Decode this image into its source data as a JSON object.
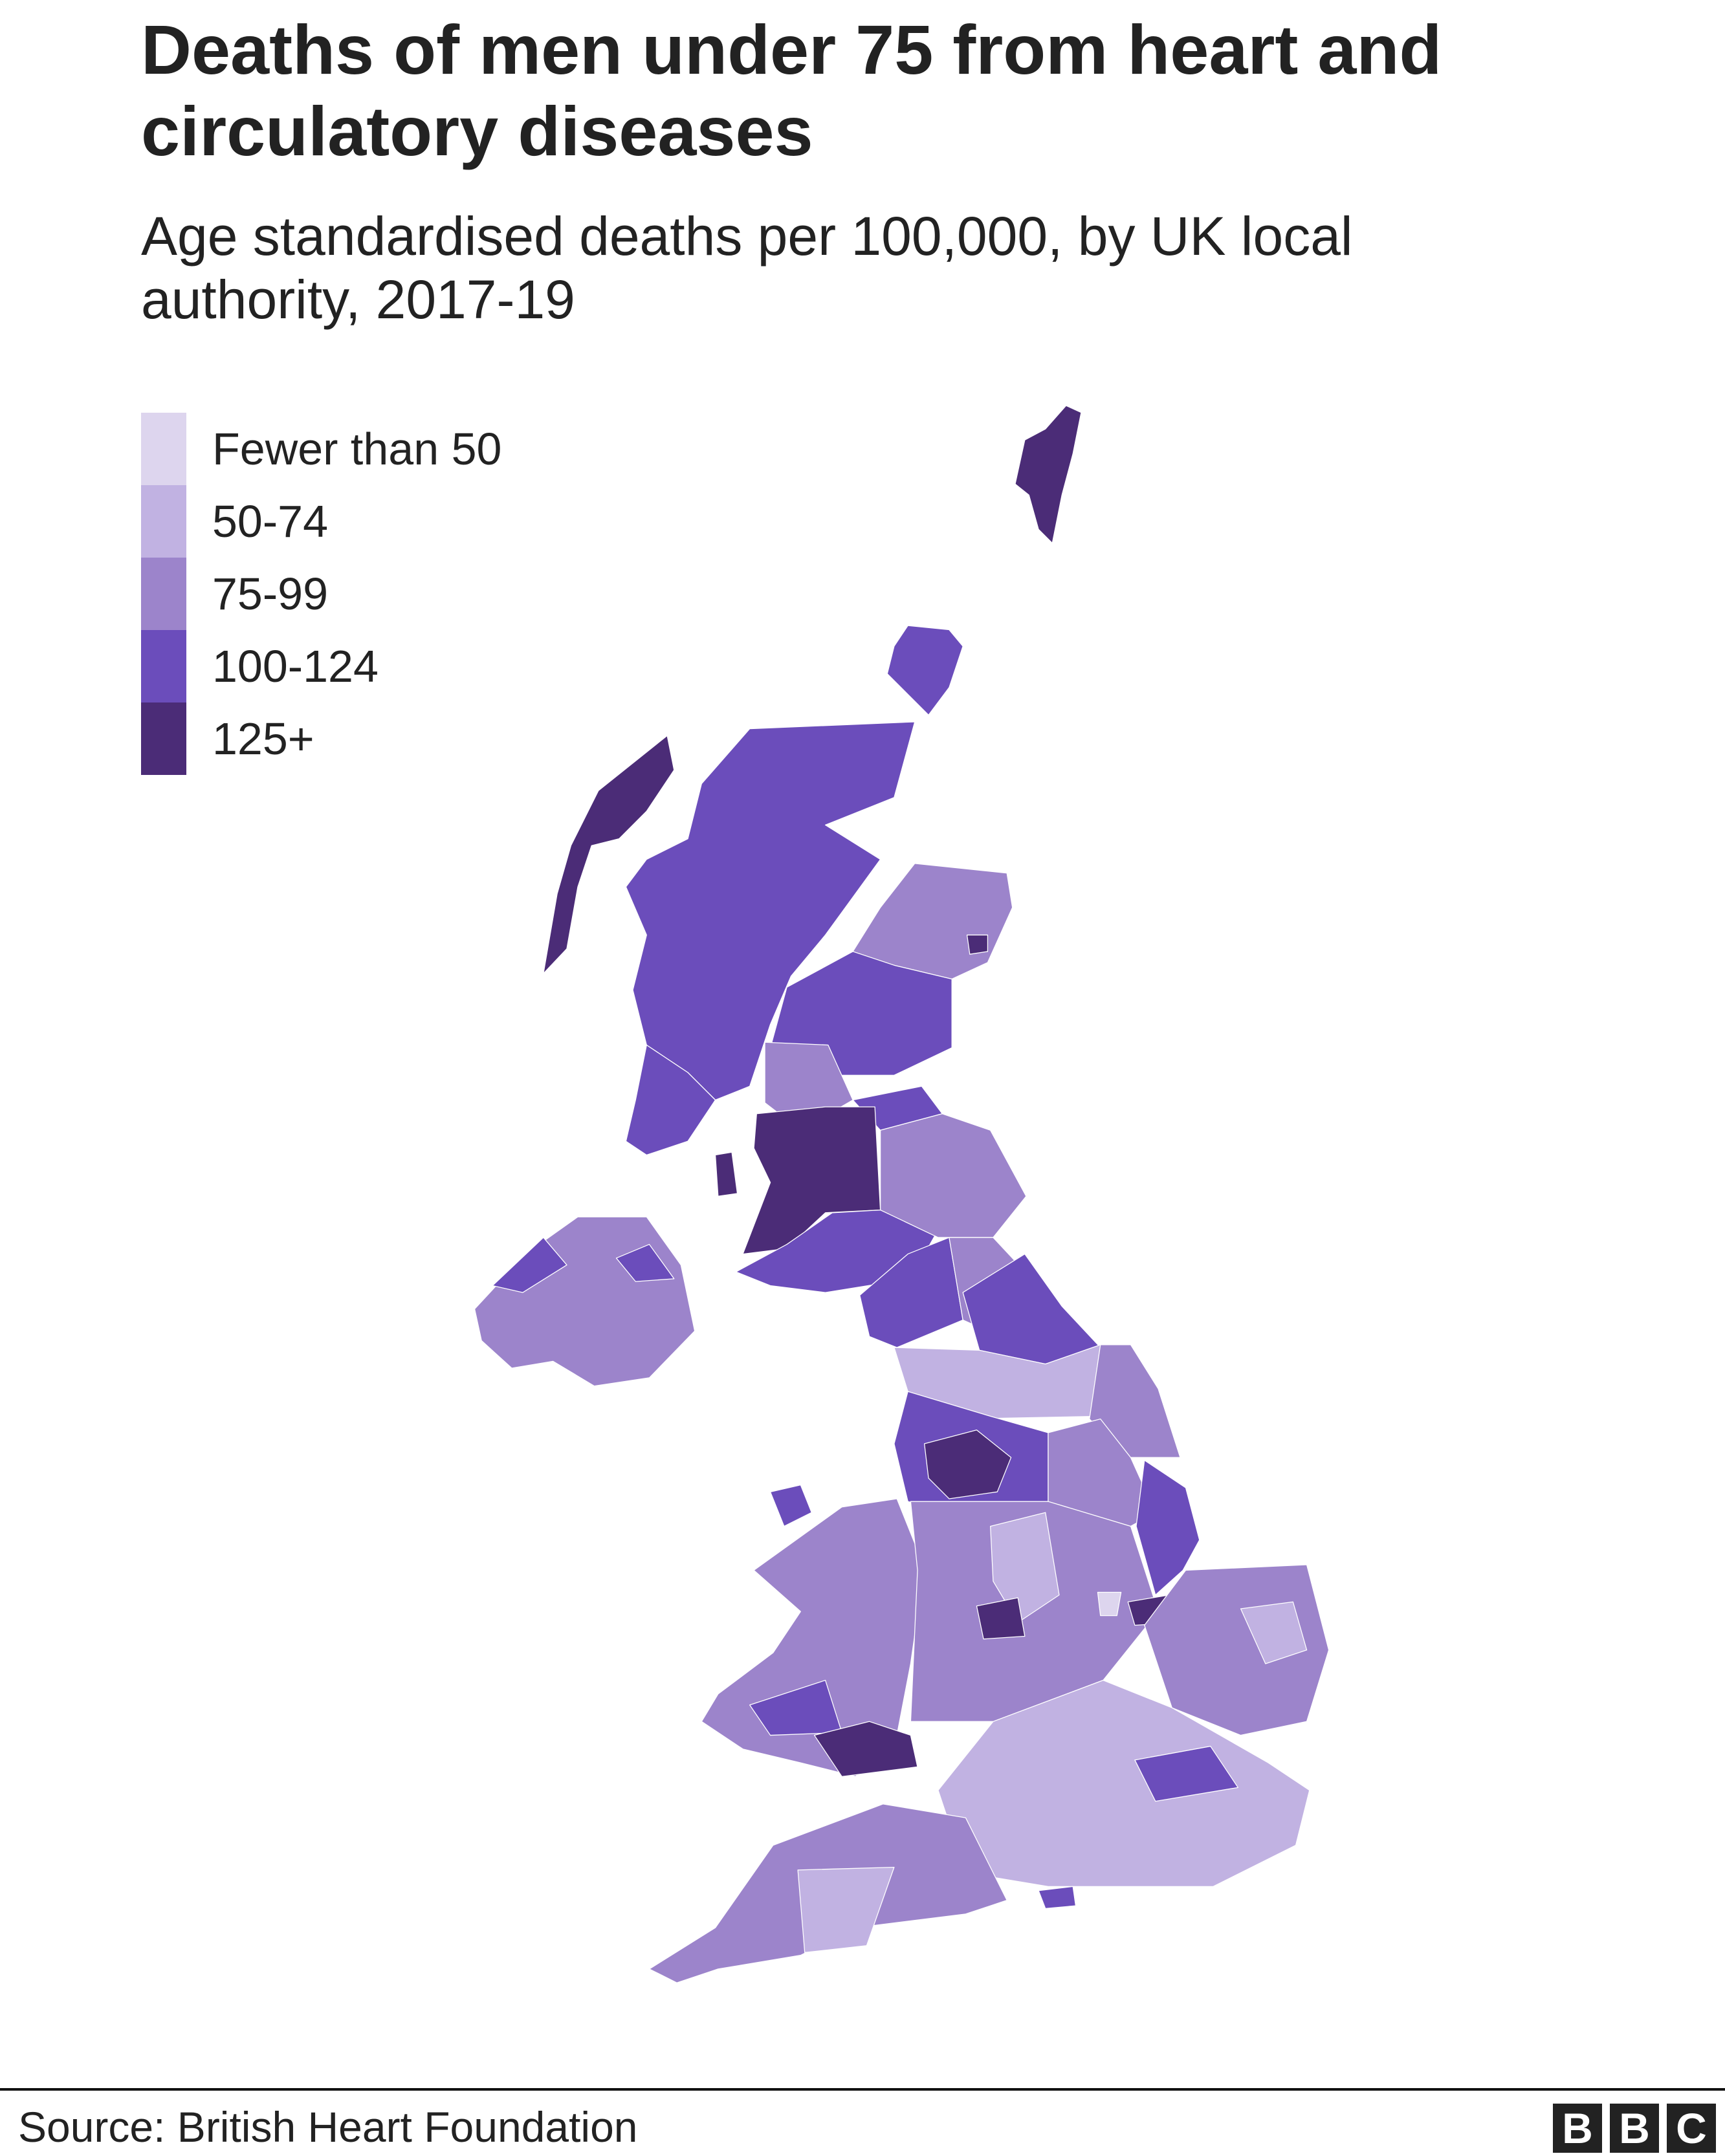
{
  "title": "Deaths of men under 75 from heart and circulatory diseases",
  "subtitle": "Age standardised deaths per 100,000, by UK local authority, 2017-19",
  "legend": [
    {
      "label": "Fewer than 50",
      "color": "#ddd5ee"
    },
    {
      "label": "50-74",
      "color": "#c1b2e2"
    },
    {
      "label": "75-99",
      "color": "#9c84cb"
    },
    {
      "label": "100-124",
      "color": "#6b4dbb"
    },
    {
      "label": "125+",
      "color": "#4b2c77"
    }
  ],
  "source": "Source: British Heart Foundation",
  "logo": {
    "letters": [
      "B",
      "B",
      "C"
    ]
  }
}
